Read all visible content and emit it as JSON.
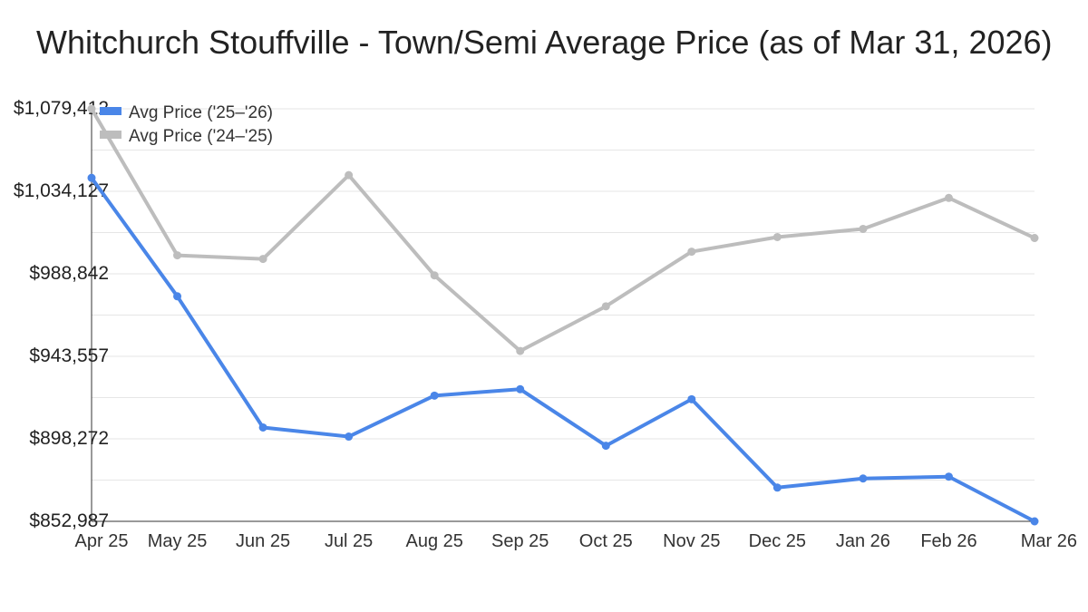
{
  "chart_data": {
    "type": "line",
    "title": "Whitchurch Stouffville - Town/Semi Average Price (as of Mar 31, 2026)",
    "xlabel": "",
    "ylabel": "",
    "categories": [
      "Apr 25",
      "May 25",
      "Jun 25",
      "Jul 25",
      "Aug 25",
      "Sep 25",
      "Oct 25",
      "Nov 25",
      "Dec 25",
      "Jan 26",
      "Feb 26",
      "Mar 26"
    ],
    "y_ticks": [
      "$852,987",
      "$898,272",
      "$943,557",
      "$988,842",
      "$1,034,127",
      "$1,079,412"
    ],
    "ylim": [
      852987,
      1079412
    ],
    "grid": true,
    "legend_position": "top-left",
    "series": [
      {
        "name": "Avg Price ('25–'26)",
        "color": "#4a86e8",
        "values": [
          1041500,
          976500,
          904500,
          899500,
          922000,
          925500,
          894500,
          920000,
          871500,
          876500,
          877500,
          852987
        ]
      },
      {
        "name": "Avg Price ('24–'25)",
        "color": "#bdbdbd",
        "values": [
          1079412,
          999000,
          997000,
          1043000,
          988000,
          946500,
          971000,
          1001000,
          1009000,
          1013500,
          1030500,
          1008500
        ]
      }
    ]
  }
}
